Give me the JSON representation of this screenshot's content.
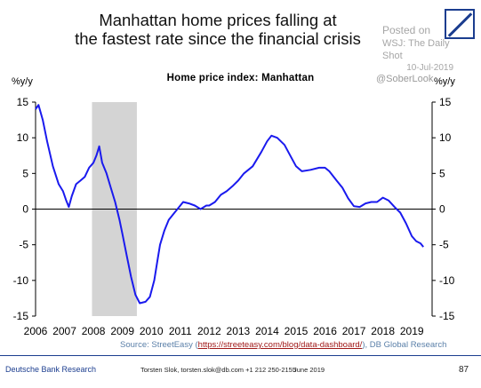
{
  "slide": {
    "title_line1": "Manhattan home prices falling at",
    "title_line2": "the fastest rate since the financial crisis",
    "posted_label": "Posted on",
    "posted_source": "WSJ: The Daily Shot",
    "posted_date": "10-Jul-2019",
    "handle": "@SoberLook",
    "source_prefix": "Source: StreetEasy (",
    "source_link": "https://streeteasy.com/blog/data-dashboard/",
    "source_suffix": "), DB Global Research",
    "footer_org": "Deutsche Bank Research",
    "footer_contact": "Torsten Slok, torsten.slok@db.com  +1 212 250-2155",
    "footer_date": "June 2019",
    "page_number": "87"
  },
  "colors": {
    "line": "#1a1aee",
    "recession_shade": "#d4d4d4",
    "brand": "#1b3d8f"
  },
  "chart_data": {
    "type": "line",
    "title": "Home price index: Manhattan",
    "ylabel_left": "%y/y",
    "ylabel_right": "%y/y",
    "ylim": [
      -15,
      15
    ],
    "yticks": [
      15,
      10,
      5,
      0,
      -5,
      -10,
      -15
    ],
    "xlim": [
      2006,
      2019.7
    ],
    "xticks": [
      "2006",
      "2007",
      "2008",
      "2009",
      "2010",
      "2011",
      "2012",
      "2013",
      "2014",
      "2015",
      "2016",
      "2017",
      "2018",
      "2019"
    ],
    "grid": false,
    "shaded_period": {
      "start": 2007.95,
      "end": 2009.5,
      "label": "recession"
    },
    "series": [
      {
        "values": [
          [
            2006.0,
            14.0
          ],
          [
            2006.1,
            14.6
          ],
          [
            2006.25,
            12.5
          ],
          [
            2006.4,
            9.5
          ],
          [
            2006.6,
            6.0
          ],
          [
            2006.8,
            3.5
          ],
          [
            2006.95,
            2.5
          ],
          [
            2007.05,
            1.3
          ],
          [
            2007.15,
            0.3
          ],
          [
            2007.25,
            1.8
          ],
          [
            2007.4,
            3.5
          ],
          [
            2007.55,
            4.0
          ],
          [
            2007.7,
            4.5
          ],
          [
            2007.85,
            5.8
          ],
          [
            2008.0,
            6.5
          ],
          [
            2008.1,
            7.5
          ],
          [
            2008.2,
            8.8
          ],
          [
            2008.3,
            6.5
          ],
          [
            2008.45,
            5.0
          ],
          [
            2008.6,
            3.0
          ],
          [
            2008.75,
            1.0
          ],
          [
            2008.9,
            -1.5
          ],
          [
            2009.0,
            -3.5
          ],
          [
            2009.15,
            -6.5
          ],
          [
            2009.3,
            -9.5
          ],
          [
            2009.45,
            -12.0
          ],
          [
            2009.6,
            -13.2
          ],
          [
            2009.8,
            -13.0
          ],
          [
            2009.95,
            -12.3
          ],
          [
            2010.1,
            -10.0
          ],
          [
            2010.2,
            -7.5
          ],
          [
            2010.3,
            -5.0
          ],
          [
            2010.45,
            -3.0
          ],
          [
            2010.6,
            -1.5
          ],
          [
            2010.8,
            -0.5
          ],
          [
            2011.0,
            0.5
          ],
          [
            2011.1,
            1.0
          ],
          [
            2011.3,
            0.8
          ],
          [
            2011.5,
            0.5
          ],
          [
            2011.7,
            0.0
          ],
          [
            2011.9,
            0.5
          ],
          [
            2012.0,
            0.5
          ],
          [
            2012.2,
            1.0
          ],
          [
            2012.4,
            2.0
          ],
          [
            2012.6,
            2.5
          ],
          [
            2012.8,
            3.2
          ],
          [
            2013.0,
            4.0
          ],
          [
            2013.2,
            5.0
          ],
          [
            2013.5,
            6.0
          ],
          [
            2013.8,
            8.0
          ],
          [
            2014.0,
            9.5
          ],
          [
            2014.15,
            10.3
          ],
          [
            2014.35,
            10.0
          ],
          [
            2014.6,
            9.0
          ],
          [
            2014.8,
            7.5
          ],
          [
            2015.0,
            6.0
          ],
          [
            2015.2,
            5.3
          ],
          [
            2015.5,
            5.5
          ],
          [
            2015.8,
            5.8
          ],
          [
            2016.0,
            5.8
          ],
          [
            2016.15,
            5.3
          ],
          [
            2016.4,
            4.0
          ],
          [
            2016.6,
            3.0
          ],
          [
            2016.8,
            1.5
          ],
          [
            2017.0,
            0.4
          ],
          [
            2017.2,
            0.3
          ],
          [
            2017.4,
            0.8
          ],
          [
            2017.6,
            1.0
          ],
          [
            2017.8,
            1.0
          ],
          [
            2018.0,
            1.6
          ],
          [
            2018.2,
            1.2
          ],
          [
            2018.4,
            0.3
          ],
          [
            2018.6,
            -0.5
          ],
          [
            2018.8,
            -2.0
          ],
          [
            2019.0,
            -3.8
          ],
          [
            2019.15,
            -4.5
          ],
          [
            2019.3,
            -4.8
          ],
          [
            2019.4,
            -5.3
          ]
        ]
      }
    ]
  }
}
